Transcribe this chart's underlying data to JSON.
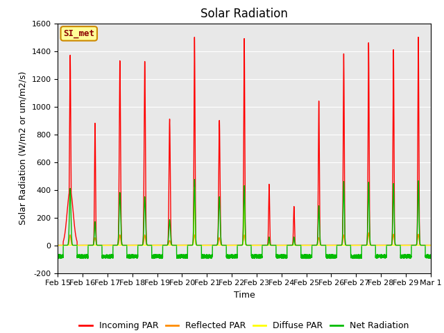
{
  "title": "Solar Radiation",
  "ylabel": "Solar Radiation (W/m2 or um/m2/s)",
  "xlabel": "Time",
  "ylim": [
    -200,
    1600
  ],
  "yticks": [
    -200,
    0,
    200,
    400,
    600,
    800,
    1000,
    1200,
    1400,
    1600
  ],
  "xtick_labels": [
    "Feb 15",
    "Feb 16",
    "Feb 17",
    "Feb 18",
    "Feb 19",
    "Feb 20",
    "Feb 21",
    "Feb 22",
    "Feb 23",
    "Feb 24",
    "Feb 25",
    "Feb 26",
    "Feb 27",
    "Feb 28",
    "Feb 29",
    "Mar 1"
  ],
  "colors": {
    "incoming": "#FF0000",
    "reflected": "#FF8C00",
    "diffuse": "#FFFF00",
    "net": "#00BB00"
  },
  "legend_label_box": "SI_met",
  "legend_box_facecolor": "#FFFF99",
  "legend_box_edgecolor": "#CC8800",
  "bg_color": "#E8E8E8",
  "line_width": 1.0,
  "title_fontsize": 12,
  "axis_label_fontsize": 9,
  "tick_fontsize": 8,
  "legend_fontsize": 9,
  "si_met_fontsize": 9,
  "n_days": 15,
  "n_per_day": 288,
  "incoming_peaks": [
    1370,
    880,
    1330,
    1325,
    910,
    1500,
    900,
    1490,
    440,
    280,
    1040,
    1380,
    1460,
    1410,
    1500
  ],
  "incoming_widths": [
    2.5,
    2.0,
    2.5,
    2.5,
    2.5,
    2.0,
    2.5,
    2.0,
    2.0,
    2.0,
    2.0,
    2.0,
    2.0,
    2.0,
    2.0
  ],
  "incoming_has_shoulder": [
    true,
    false,
    false,
    false,
    false,
    false,
    false,
    false,
    false,
    false,
    false,
    false,
    false,
    false,
    false
  ],
  "incoming_shoulder_height": [
    400,
    0,
    0,
    0,
    0,
    0,
    0,
    0,
    0,
    0,
    0,
    0,
    0,
    0,
    0
  ],
  "reflected_peaks": [
    75,
    55,
    75,
    75,
    35,
    75,
    55,
    75,
    25,
    35,
    55,
    75,
    90,
    80,
    80
  ],
  "reflected_widths": [
    3.0,
    3.0,
    3.0,
    3.0,
    3.0,
    3.0,
    3.0,
    3.0,
    3.0,
    3.0,
    3.0,
    3.0,
    3.0,
    3.0,
    3.0
  ],
  "diffuse_peaks": [
    0,
    0,
    0,
    0,
    0,
    420,
    0,
    430,
    0,
    0,
    0,
    0,
    0,
    0,
    0
  ],
  "diffuse_widths": [
    2.0,
    2.0,
    2.0,
    2.0,
    2.0,
    2.0,
    2.0,
    2.0,
    2.0,
    2.0,
    2.0,
    2.0,
    2.0,
    2.0,
    2.0
  ],
  "net_peaks": [
    410,
    170,
    380,
    350,
    185,
    475,
    350,
    430,
    60,
    60,
    285,
    460,
    455,
    445,
    465
  ],
  "net_widths": [
    3.0,
    2.5,
    3.0,
    3.0,
    3.0,
    2.5,
    3.0,
    2.5,
    2.0,
    2.0,
    2.5,
    2.5,
    2.5,
    2.5,
    2.5
  ],
  "net_night_base": -80,
  "net_noise_amp": 15
}
